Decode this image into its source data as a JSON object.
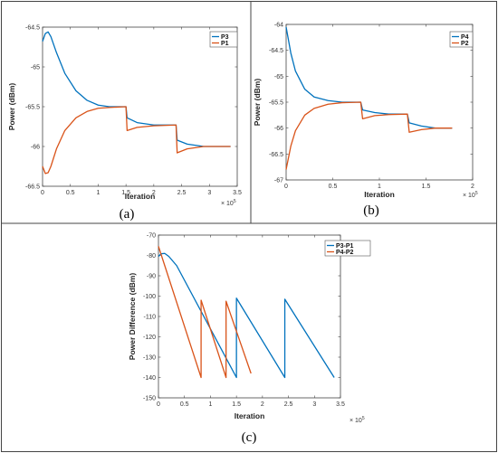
{
  "colors": {
    "blue": "#0072BD",
    "orange": "#D95319"
  },
  "chart_data": [
    {
      "id": "a",
      "type": "line",
      "panel_label": "(a)",
      "xlabel": "Iteration",
      "ylabel": "Power (dBm)",
      "xlim": [
        0,
        3.5
      ],
      "ylim": [
        -66.5,
        -64.5
      ],
      "xticks": [
        "0",
        "0.5",
        "1",
        "1.5",
        "2",
        "2.5",
        "3",
        "3.5"
      ],
      "yticks": [
        "-64.5",
        "-65",
        "-65.5",
        "-66",
        "-66.5"
      ],
      "xticks_v": [
        0,
        0.5,
        1,
        1.5,
        2,
        2.5,
        3,
        3.5
      ],
      "yticks_v": [
        -64.5,
        -65,
        -65.5,
        -66,
        -66.5
      ],
      "x_multiplier": "× 10",
      "x_exponent": "5",
      "legend_position": "top-right",
      "series": [
        {
          "name": "P3",
          "color": "#0072BD",
          "x": [
            0,
            0.05,
            0.1,
            0.15,
            0.25,
            0.4,
            0.6,
            0.8,
            1.0,
            1.2,
            1.5,
            1.52,
            1.7,
            2.0,
            2.4,
            2.42,
            2.6,
            2.9,
            3.0,
            3.38
          ],
          "y": [
            -64.68,
            -64.58,
            -64.56,
            -64.62,
            -64.82,
            -65.08,
            -65.3,
            -65.42,
            -65.48,
            -65.5,
            -65.5,
            -65.64,
            -65.7,
            -65.73,
            -65.73,
            -65.92,
            -65.97,
            -66.0,
            -66.0,
            -66.0
          ]
        },
        {
          "name": "P1",
          "color": "#D95319",
          "x": [
            0,
            0.05,
            0.1,
            0.15,
            0.25,
            0.4,
            0.6,
            0.8,
            1.0,
            1.2,
            1.5,
            1.52,
            1.7,
            2.0,
            2.4,
            2.42,
            2.6,
            2.9,
            3.0,
            3.38
          ],
          "y": [
            -66.25,
            -66.34,
            -66.33,
            -66.25,
            -66.03,
            -65.8,
            -65.64,
            -65.56,
            -65.52,
            -65.51,
            -65.5,
            -65.8,
            -65.76,
            -65.74,
            -65.73,
            -66.08,
            -66.03,
            -66.0,
            -66.0,
            -66.0
          ]
        }
      ]
    },
    {
      "id": "b",
      "type": "line",
      "panel_label": "(b)",
      "xlabel": "Iteration",
      "ylabel": "Power (dBm)",
      "xlim": [
        0,
        2
      ],
      "ylim": [
        -67,
        -64
      ],
      "xticks": [
        "0",
        "0.5",
        "1",
        "1.5",
        "2"
      ],
      "yticks": [
        "-64",
        "-64.5",
        "-65",
        "-65.5",
        "-66",
        "-66.5",
        "-67"
      ],
      "xticks_v": [
        0,
        0.5,
        1,
        1.5,
        2
      ],
      "yticks_v": [
        -64,
        -64.5,
        -65,
        -65.5,
        -66,
        -66.5,
        -67
      ],
      "x_multiplier": "× 10",
      "x_exponent": "5",
      "legend_position": "top-right",
      "series": [
        {
          "name": "P4",
          "color": "#0072BD",
          "x": [
            0,
            0.05,
            0.1,
            0.2,
            0.3,
            0.45,
            0.6,
            0.8,
            0.82,
            0.95,
            1.1,
            1.3,
            1.32,
            1.45,
            1.6,
            1.78
          ],
          "y": [
            -64.05,
            -64.55,
            -64.9,
            -65.25,
            -65.4,
            -65.47,
            -65.5,
            -65.5,
            -65.65,
            -65.7,
            -65.73,
            -65.73,
            -65.9,
            -65.96,
            -66.0,
            -66.0
          ]
        },
        {
          "name": "P2",
          "color": "#D95319",
          "x": [
            0,
            0.05,
            0.1,
            0.2,
            0.3,
            0.45,
            0.6,
            0.8,
            0.82,
            0.95,
            1.1,
            1.3,
            1.32,
            1.45,
            1.6,
            1.78
          ],
          "y": [
            -66.8,
            -66.35,
            -66.05,
            -65.75,
            -65.62,
            -65.54,
            -65.51,
            -65.5,
            -65.82,
            -65.76,
            -65.74,
            -65.73,
            -66.08,
            -66.03,
            -66.0,
            -66.0
          ]
        }
      ]
    },
    {
      "id": "c",
      "type": "line",
      "panel_label": "(c)",
      "xlabel": "Iteration",
      "ylabel": "Power Difference (dBm)",
      "xlim": [
        0,
        3.5
      ],
      "ylim": [
        -150,
        -70
      ],
      "xticks": [
        "0",
        "0.5",
        "1",
        "1.5",
        "2",
        "2.5",
        "3",
        "3.5"
      ],
      "yticks": [
        "-70",
        "-80",
        "-90",
        "-100",
        "-110",
        "-120",
        "-130",
        "-140",
        "-150"
      ],
      "xticks_v": [
        0,
        0.5,
        1,
        1.5,
        2,
        2.5,
        3,
        3.5
      ],
      "yticks_v": [
        -70,
        -80,
        -90,
        -100,
        -110,
        -120,
        -130,
        -140,
        -150
      ],
      "x_multiplier": "× 10",
      "x_exponent": "5",
      "legend_position": "top-right",
      "series": [
        {
          "name": "P3-P1",
          "color": "#0072BD",
          "x": [
            0,
            0.05,
            0.12,
            0.2,
            0.35,
            1.5,
            1.5,
            2.43,
            2.43,
            3.38
          ],
          "y": [
            -80.5,
            -79.2,
            -79.0,
            -80.5,
            -85,
            -140,
            -101,
            -140,
            -101.5,
            -140
          ]
        },
        {
          "name": "P4-P2",
          "color": "#D95319",
          "x": [
            0,
            0.82,
            0.82,
            1.3,
            1.3,
            1.78
          ],
          "y": [
            -75.5,
            -140,
            -102,
            -140,
            -102.5,
            -138
          ]
        }
      ]
    }
  ]
}
